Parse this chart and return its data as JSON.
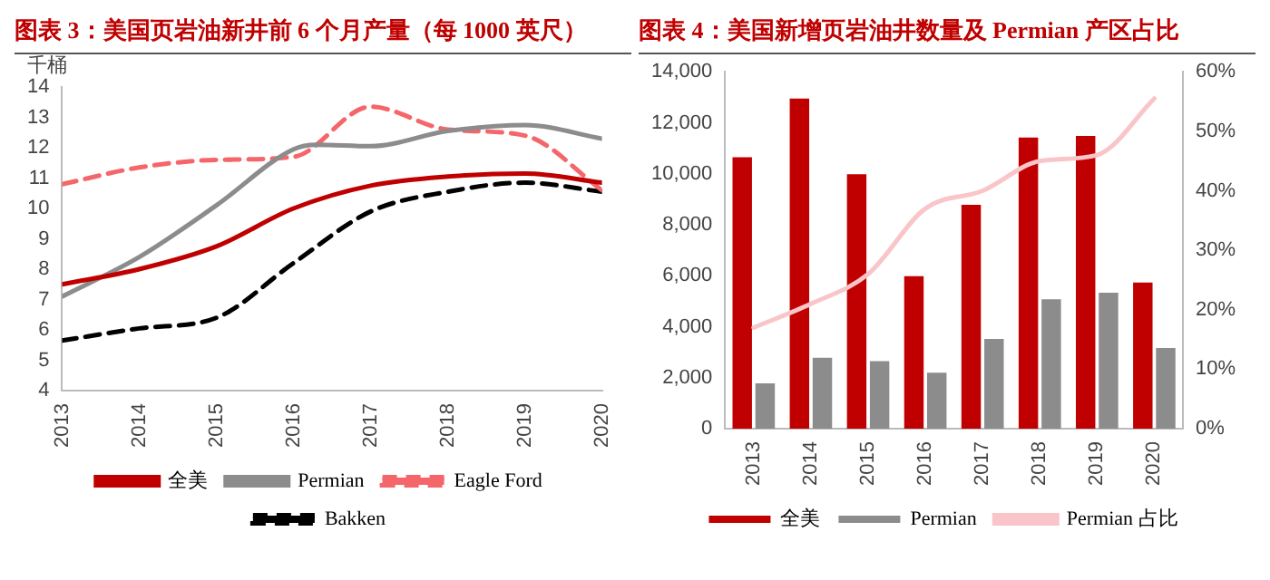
{
  "chart_data": [
    {
      "type": "line",
      "title": "图表 3：美国页岩油新井前 6 个月产量（每 1000 英尺）",
      "ylabel": "千桶",
      "xlim": [
        2013,
        2020
      ],
      "xticks": [
        2013,
        2014,
        2015,
        2016,
        2017,
        2018,
        2019,
        2020
      ],
      "ylim": [
        4,
        14
      ],
      "yticks": [
        4,
        5,
        6,
        7,
        8,
        9,
        10,
        11,
        12,
        13,
        14
      ],
      "grid": false,
      "legend": "bottom",
      "marker": "none",
      "series": [
        {
          "name": "全美",
          "color": "#c00000",
          "line_style": "solid",
          "x": [
            2013,
            2014,
            2015,
            2016,
            2017,
            2018,
            2019,
            2020
          ],
          "values": [
            7.5,
            8.0,
            8.75,
            10.0,
            10.75,
            11.05,
            11.15,
            10.85
          ]
        },
        {
          "name": "Permian",
          "color": "#8c8c8c",
          "line_style": "solid",
          "x": [
            2013,
            2014,
            2015,
            2016,
            2016.3,
            2017,
            2018,
            2019,
            2020
          ],
          "values": [
            7.1,
            8.4,
            10.1,
            11.95,
            12.1,
            12.05,
            12.55,
            12.75,
            12.3
          ]
        },
        {
          "name": "Eagle Ford",
          "color": "#f4666a",
          "line_style": "dashed",
          "x": [
            2013,
            2014,
            2015,
            2016,
            2017,
            2018,
            2019,
            2020
          ],
          "values": [
            10.8,
            11.35,
            11.6,
            11.7,
            13.35,
            12.6,
            12.4,
            10.6
          ]
        },
        {
          "name": "Bakken",
          "color": "#000000",
          "line_style": "dashed",
          "x": [
            2013,
            2014,
            2015,
            2016,
            2017,
            2018,
            2019,
            2020
          ],
          "values": [
            5.65,
            6.05,
            6.4,
            8.2,
            9.9,
            10.55,
            10.85,
            10.55
          ]
        }
      ]
    },
    {
      "type": "bar",
      "title": "图表 4：美国新增页岩油井数量及 Permian 产区占比",
      "categories": [
        "2013",
        "2014",
        "2015",
        "2016",
        "2017",
        "2018",
        "2019",
        "2020"
      ],
      "ylim": [
        0,
        14000
      ],
      "yticks": [
        {
          "value": 0,
          "label": "0"
        },
        {
          "value": 2000,
          "label": "2,000"
        },
        {
          "value": 4000,
          "label": "4,000"
        },
        {
          "value": 6000,
          "label": "6,000"
        },
        {
          "value": 8000,
          "label": "8,000"
        },
        {
          "value": 10000,
          "label": "10,000"
        },
        {
          "value": 12000,
          "label": "12,000"
        },
        {
          "value": 14000,
          "label": "14,000"
        }
      ],
      "y2lim": [
        0,
        60
      ],
      "y2ticks": [
        {
          "value": 0,
          "label": "0%"
        },
        {
          "value": 10,
          "label": "10%"
        },
        {
          "value": 20,
          "label": "20%"
        },
        {
          "value": 30,
          "label": "30%"
        },
        {
          "value": 40,
          "label": "40%"
        },
        {
          "value": 50,
          "label": "50%"
        },
        {
          "value": 60,
          "label": "60%"
        }
      ],
      "grid": false,
      "legend": "bottom",
      "marker": "none",
      "series": [
        {
          "name": "全美",
          "color": "#c00000",
          "values": [
            10650,
            12950,
            9980,
            5980,
            8780,
            11420,
            11480,
            5730
          ]
        },
        {
          "name": "Permian",
          "color": "#8c8c8c",
          "values": [
            1780,
            2780,
            2650,
            2200,
            3520,
            5080,
            5330,
            3170
          ]
        },
        {
          "name": "Permian 占比",
          "type": "line",
          "axis": "y2",
          "color": "#f9c5c8",
          "values": [
            17,
            21,
            26,
            37,
            40,
            45,
            46,
            55.5
          ]
        }
      ]
    }
  ]
}
